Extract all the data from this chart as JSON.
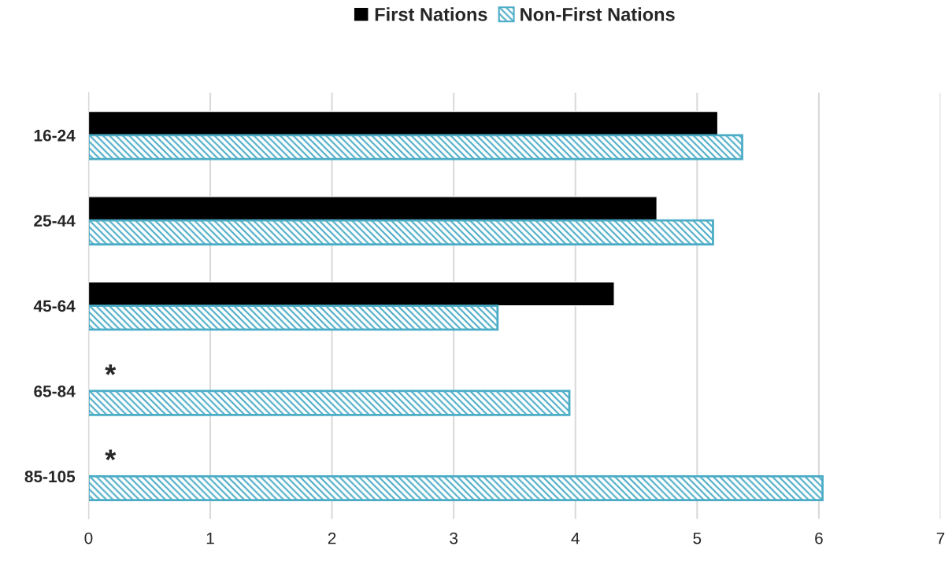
{
  "chart_data": {
    "type": "bar",
    "orientation": "horizontal",
    "categories": [
      "16-24",
      "25-44",
      "45-64",
      "65-84",
      "85-105"
    ],
    "series": [
      {
        "name": "First Nations",
        "color": "#000000",
        "values": [
          5.17,
          4.67,
          4.32,
          null,
          null
        ]
      },
      {
        "name": "Non-First Nations",
        "color": "#4bacc6",
        "values": [
          5.37,
          5.13,
          3.36,
          3.95,
          6.03
        ]
      }
    ],
    "xlim": [
      0,
      7
    ],
    "xticks": [
      0,
      1,
      2,
      3,
      4,
      5,
      6,
      7
    ],
    "grid": "x",
    "legend": "top",
    "annotations": [
      {
        "text": "*",
        "x": 0.18,
        "y": "65-84"
      },
      {
        "text": "*",
        "x": 0.18,
        "y": "85-105"
      }
    ]
  }
}
